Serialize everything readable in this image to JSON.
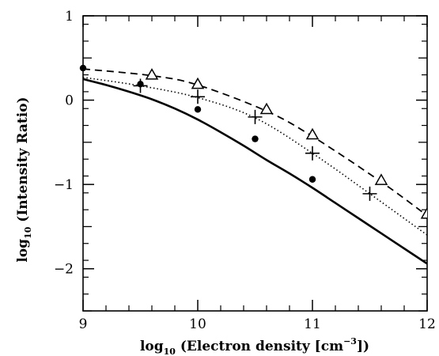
{
  "chart_data": {
    "type": "line",
    "title": "",
    "xlabel": "log₁₀ (Electron density [cm⁻³])",
    "ylabel": "log₁₀ (Intensity Ratio)",
    "xlabel_parts": {
      "prefix": "log",
      "sub": "10",
      "text": " (Electron density [cm",
      "sup": "−3",
      "suffix": "])"
    },
    "ylabel_parts": {
      "prefix": "log",
      "sub": "10",
      "text": " (Intensity Ratio)"
    },
    "xlim": [
      9,
      12
    ],
    "ylim": [
      -2.5,
      1.0
    ],
    "x_ticks": [
      {
        "value": 9,
        "label": "9"
      },
      {
        "value": 10,
        "label": "10"
      },
      {
        "value": 11,
        "label": "11"
      },
      {
        "value": 12,
        "label": "12"
      }
    ],
    "y_ticks": [
      {
        "value": 1,
        "label": "1"
      },
      {
        "value": 0,
        "label": "0"
      },
      {
        "value": -1,
        "label": "−1"
      },
      {
        "value": -2,
        "label": "−2"
      }
    ],
    "x_minor_step": 0.2,
    "y_minor_step": 0.2,
    "grid": false,
    "series": [
      {
        "style": "solid",
        "color": "#000000",
        "x": [
          9.0,
          9.2,
          9.4,
          9.6,
          9.8,
          10.0,
          10.2,
          10.4,
          10.6,
          10.8,
          11.0,
          11.2,
          11.4,
          11.6,
          11.8,
          12.0
        ],
        "y": [
          0.25,
          0.18,
          0.1,
          0.01,
          -0.1,
          -0.23,
          -0.38,
          -0.54,
          -0.71,
          -0.87,
          -1.04,
          -1.22,
          -1.4,
          -1.58,
          -1.76,
          -1.94
        ]
      },
      {
        "style": "dotted",
        "color": "#000000",
        "x": [
          9.0,
          9.5,
          10.0,
          10.5,
          11.0,
          11.5,
          12.0
        ],
        "y": [
          0.27,
          0.17,
          0.03,
          -0.21,
          -0.63,
          -1.11,
          -1.6
        ]
      },
      {
        "style": "dashed",
        "color": "#000000",
        "x": [
          9.0,
          9.6,
          10.0,
          10.6,
          11.0,
          11.6,
          12.0
        ],
        "y": [
          0.37,
          0.29,
          0.18,
          -0.13,
          -0.43,
          -0.97,
          -1.37
        ]
      }
    ],
    "markers": [
      {
        "symbol": "circle",
        "x": [
          9.0,
          9.5,
          10.0,
          10.5,
          11.0
        ],
        "y": [
          0.38,
          0.19,
          -0.11,
          -0.46,
          -0.94
        ]
      },
      {
        "symbol": "plus",
        "x": [
          9.5,
          10.0,
          10.5,
          11.0,
          11.5
        ],
        "y": [
          0.17,
          0.04,
          -0.2,
          -0.63,
          -1.11
        ]
      },
      {
        "symbol": "triangle",
        "x": [
          9.6,
          10.0,
          10.6,
          11.0,
          11.6,
          12.0
        ],
        "y": [
          0.3,
          0.19,
          -0.11,
          -0.41,
          -0.95,
          -1.35
        ]
      }
    ]
  }
}
